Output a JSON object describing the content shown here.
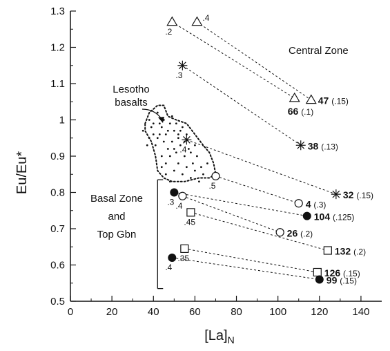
{
  "chart_data": {
    "type": "scatter",
    "title": "",
    "xlabel": "[La]",
    "xlabel_sub": "N",
    "ylabel": "Eu/Eu*",
    "xlim": [
      0,
      150
    ],
    "ylim": [
      0.5,
      1.3
    ],
    "x_ticks": [
      "0",
      "20",
      "40",
      "60",
      "80",
      "100",
      "120",
      "140"
    ],
    "y_ticks": [
      "0.5",
      "0.6",
      "0.7",
      "0.8",
      "0.9",
      "1",
      "1.1",
      "1.2",
      "1.3"
    ],
    "annotations": {
      "central_zone": "Central Zone",
      "lesotho_line1": "Lesotho",
      "lesotho_line2": "basalts",
      "basal_line1": "Basal Zone",
      "basal_line2": "and",
      "basal_line3": "Top Gbn"
    },
    "lesotho_points": [
      [
        35,
        0.97
      ],
      [
        38,
        1.0
      ],
      [
        40,
        0.99
      ],
      [
        42,
        1.02
      ],
      [
        44,
        0.98
      ],
      [
        46,
        0.96
      ],
      [
        48,
        0.99
      ],
      [
        50,
        0.97
      ],
      [
        52,
        0.95
      ],
      [
        54,
        0.98
      ],
      [
        56,
        0.96
      ],
      [
        38,
        0.95
      ],
      [
        41,
        0.93
      ],
      [
        43,
        0.96
      ],
      [
        45,
        0.94
      ],
      [
        47,
        0.92
      ],
      [
        49,
        0.94
      ],
      [
        51,
        0.91
      ],
      [
        53,
        0.93
      ],
      [
        55,
        0.9
      ],
      [
        57,
        0.92
      ],
      [
        59,
        0.88
      ],
      [
        61,
        0.9
      ],
      [
        63,
        0.87
      ],
      [
        44,
        0.9
      ],
      [
        46,
        0.88
      ],
      [
        48,
        0.9
      ],
      [
        50,
        0.86
      ],
      [
        52,
        0.88
      ],
      [
        54,
        0.85
      ],
      [
        56,
        0.87
      ],
      [
        58,
        0.84
      ],
      [
        60,
        0.86
      ],
      [
        62,
        0.83
      ],
      [
        64,
        0.85
      ],
      [
        66,
        0.88
      ],
      [
        45,
        1.0
      ],
      [
        47,
        0.97
      ],
      [
        49,
        1.01
      ],
      [
        39,
        0.98
      ],
      [
        42,
        0.95
      ],
      [
        44,
        0.87
      ],
      [
        46,
        0.85
      ],
      [
        48,
        0.83
      ],
      [
        50,
        0.92
      ],
      [
        52,
        0.96
      ],
      [
        55,
        0.94
      ],
      [
        58,
        0.91
      ],
      [
        60,
        0.93
      ],
      [
        37,
        0.93
      ],
      [
        40,
        0.96
      ],
      [
        43,
        0.99
      ],
      [
        51,
        0.99
      ],
      [
        53,
        0.97
      ]
    ],
    "lesotho_outline": [
      [
        36,
        0.99
      ],
      [
        38,
        1.02
      ],
      [
        42,
        1.04
      ],
      [
        45,
        1.04
      ],
      [
        47,
        1.01
      ],
      [
        51,
        1.0
      ],
      [
        56,
        0.99
      ],
      [
        60,
        0.96
      ],
      [
        64,
        0.93
      ],
      [
        67,
        0.91
      ],
      [
        69,
        0.88
      ],
      [
        70,
        0.85
      ],
      [
        67,
        0.84
      ],
      [
        62,
        0.84
      ],
      [
        55,
        0.83
      ],
      [
        49,
        0.83
      ],
      [
        45,
        0.84
      ],
      [
        42,
        0.86
      ],
      [
        41,
        0.9
      ],
      [
        39,
        0.94
      ],
      [
        36,
        0.97
      ]
    ],
    "basal_bracket": {
      "x": 42,
      "y_top": 0.835,
      "y_bottom": 0.535
    },
    "pairs": [
      {
        "marker": "triangle",
        "x1": 49,
        "y1": 1.27,
        "f1": ".2",
        "x2": 108,
        "y2": 1.06,
        "n2": "66",
        "f2": "(.1)"
      },
      {
        "marker": "triangle",
        "x1": 61,
        "y1": 1.27,
        "f1": ".4",
        "x2": 116,
        "y2": 1.055,
        "n2": "47",
        "f2": "(.15)"
      },
      {
        "marker": "star",
        "x1": 54,
        "y1": 1.15,
        "f1": ".3",
        "x2": 111,
        "y2": 0.93,
        "n2": "38",
        "f2": "(.13)"
      },
      {
        "marker": "star",
        "x1": 56,
        "y1": 0.945,
        "f1": ".4",
        "x2": 128,
        "y2": 0.795,
        "n2": "32",
        "f2": "(.15)"
      },
      {
        "marker": "circle",
        "x1": 70,
        "y1": 0.845,
        "f1": ".5",
        "x2": 110,
        "y2": 0.77,
        "n2": "4",
        "f2": "(.3)"
      },
      {
        "marker": "dot",
        "x1": 50,
        "y1": 0.8,
        "f1": ".3",
        "x2": 114,
        "y2": 0.735,
        "n2": "104",
        "f2": "(.125)"
      },
      {
        "marker": "circle",
        "x1": 54,
        "y1": 0.79,
        "f1": ".4",
        "x2": 101,
        "y2": 0.69,
        "n2": "26",
        "f2": "(.2)"
      },
      {
        "marker": "square",
        "x1": 58,
        "y1": 0.745,
        "f1": ".45",
        "x2": 124,
        "y2": 0.64,
        "n2": "132",
        "f2": "(.2)"
      },
      {
        "marker": "square",
        "x1": 55,
        "y1": 0.645,
        "f1": ".35",
        "x2": 119,
        "y2": 0.58,
        "n2": "126",
        "f2": "(.15)"
      },
      {
        "marker": "dot",
        "x1": 49,
        "y1": 0.62,
        "f1": ".4",
        "x2": 120,
        "y2": 0.56,
        "n2": "99",
        "f2": "(.15)"
      }
    ]
  }
}
